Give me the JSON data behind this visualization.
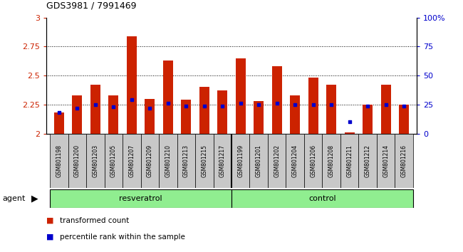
{
  "title": "GDS3981 / 7991469",
  "samples": [
    "GSM801198",
    "GSM801200",
    "GSM801203",
    "GSM801205",
    "GSM801207",
    "GSM801209",
    "GSM801210",
    "GSM801213",
    "GSM801215",
    "GSM801217",
    "GSM801199",
    "GSM801201",
    "GSM801202",
    "GSM801204",
    "GSM801206",
    "GSM801208",
    "GSM801211",
    "GSM801212",
    "GSM801214",
    "GSM801216"
  ],
  "bar_values": [
    2.18,
    2.33,
    2.42,
    2.33,
    2.84,
    2.3,
    2.63,
    2.29,
    2.4,
    2.37,
    2.65,
    2.28,
    2.58,
    2.33,
    2.48,
    2.42,
    2.01,
    2.25,
    2.42,
    2.25
  ],
  "percentile_values": [
    18,
    22,
    25,
    23,
    29,
    22,
    26,
    24,
    24,
    24,
    26,
    25,
    26,
    25,
    25,
    25,
    10,
    24,
    25,
    24
  ],
  "bar_color": "#CC2200",
  "dot_color": "#0000CC",
  "bar_bottom": 2.0,
  "ylim_left": [
    2.0,
    3.0
  ],
  "ylim_right": [
    0,
    100
  ],
  "yticks_left": [
    2.0,
    2.25,
    2.5,
    2.75,
    3.0
  ],
  "ytick_labels_left": [
    "2",
    "2.25",
    "2.5",
    "2.75",
    "3"
  ],
  "yticks_right": [
    0,
    25,
    50,
    75,
    100
  ],
  "ytick_labels_right": [
    "0",
    "25",
    "50",
    "75",
    "100%"
  ],
  "grid_lines": [
    2.25,
    2.5,
    2.75
  ],
  "background_color": "#ffffff",
  "xtick_bg": "#c8c8c8",
  "green_color": "#90EE90",
  "resveratrol_range": [
    0,
    10
  ],
  "control_range": [
    10,
    20
  ],
  "legend_items": [
    {
      "label": "transformed count",
      "color": "#CC2200"
    },
    {
      "label": "percentile rank within the sample",
      "color": "#0000CC"
    }
  ]
}
